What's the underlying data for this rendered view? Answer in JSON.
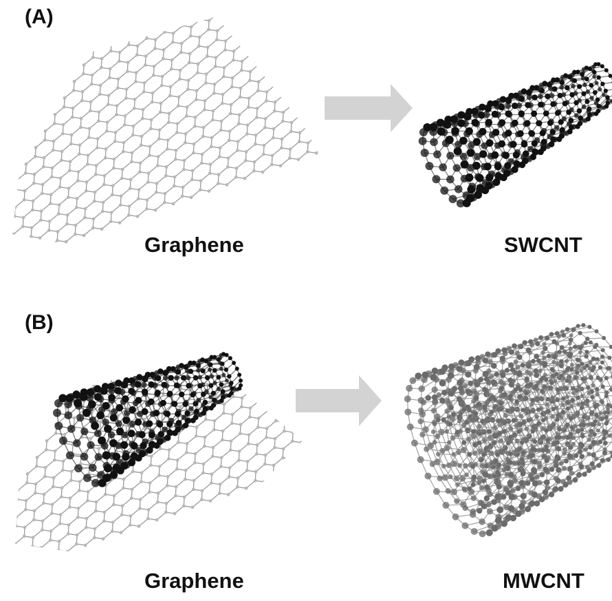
{
  "panel_a": {
    "label": "(A)",
    "left_caption": "Graphene",
    "right_caption": "SWCNT"
  },
  "panel_b": {
    "label": "(B)",
    "left_caption": "Graphene",
    "right_caption": "MWCNT"
  },
  "colors": {
    "sheet_bond": "#9a9a9a",
    "sheet_atom": "#b8b8b8",
    "swcnt_atom": "#111111",
    "mwcnt_atom": "#6b6b6b",
    "arrow": "#d3d3d3"
  }
}
